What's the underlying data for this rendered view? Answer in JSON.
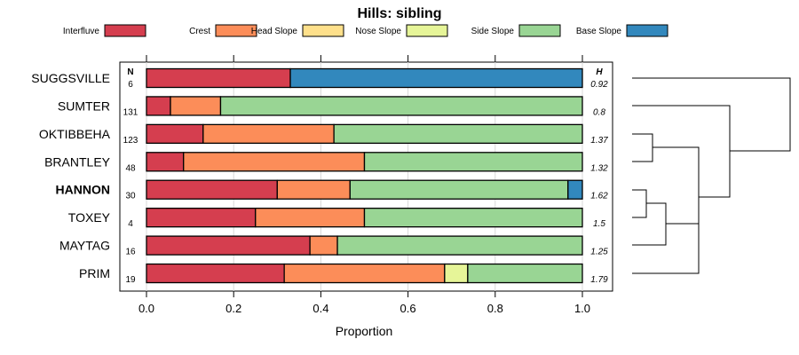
{
  "chart_data": {
    "type": "bar",
    "stacked": true,
    "orientation": "horizontal",
    "title": "Hills: sibling",
    "xlabel": "Proportion",
    "xlim": [
      0,
      1
    ],
    "xticks": [
      "0.0",
      "0.2",
      "0.4",
      "0.6",
      "0.8",
      "1.0"
    ],
    "n_header": "N",
    "h_header": "H",
    "highlighted": "HANNON",
    "legend": [
      {
        "name": "Interfluve",
        "color": "#d53e4f"
      },
      {
        "name": "Crest",
        "color": "#fc8d59"
      },
      {
        "name": "Head Slope",
        "color": "#fee08b"
      },
      {
        "name": "Nose Slope",
        "color": "#e6f598"
      },
      {
        "name": "Side Slope",
        "color": "#99d594"
      },
      {
        "name": "Base Slope",
        "color": "#3288bd"
      }
    ],
    "rows": [
      {
        "label": "SUGGSVILLE",
        "n": "6",
        "h": "0.92",
        "values": [
          0.33,
          0,
          0,
          0,
          0,
          0.67
        ]
      },
      {
        "label": "SUMTER",
        "n": "131",
        "h": "0.8",
        "values": [
          0.055,
          0.115,
          0,
          0,
          0.83,
          0
        ]
      },
      {
        "label": "OKTIBBEHA",
        "n": "123",
        "h": "1.37",
        "values": [
          0.13,
          0.3,
          0,
          0,
          0.57,
          0
        ]
      },
      {
        "label": "BRANTLEY",
        "n": "48",
        "h": "1.32",
        "values": [
          0.085,
          0.415,
          0,
          0,
          0.5,
          0
        ]
      },
      {
        "label": "HANNON",
        "n": "30",
        "h": "1.62",
        "values": [
          0.3,
          0.167,
          0,
          0,
          0.5,
          0.033
        ]
      },
      {
        "label": "TOXEY",
        "n": "4",
        "h": "1.5",
        "values": [
          0.25,
          0.25,
          0,
          0,
          0.5,
          0
        ]
      },
      {
        "label": "MAYTAG",
        "n": "16",
        "h": "1.25",
        "values": [
          0.375,
          0.063,
          0,
          0,
          0.562,
          0
        ]
      },
      {
        "label": "PRIM",
        "n": "19",
        "h": "1.79",
        "values": [
          0.316,
          0.368,
          0,
          0.053,
          0.263,
          0
        ]
      }
    ]
  }
}
